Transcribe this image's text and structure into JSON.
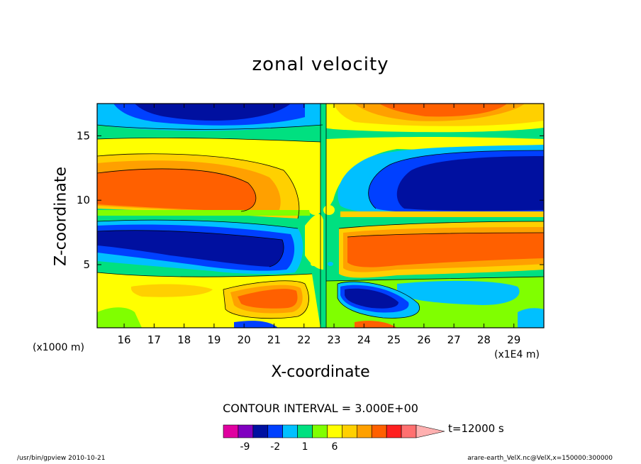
{
  "chart_data": {
    "type": "heatmap",
    "title": "zonal velocity",
    "xlabel": "X-coordinate",
    "ylabel": "Z-coordinate",
    "x_unit": "(x1000 m)",
    "x_scale": "(x1E4 m)",
    "x_ticks": [
      16,
      17,
      18,
      19,
      20,
      21,
      22,
      23,
      24,
      25,
      26,
      27,
      28,
      29
    ],
    "y_ticks": [
      5,
      10,
      15
    ],
    "xlim": [
      15.1,
      30.0
    ],
    "ylim": [
      0.1,
      17.5
    ],
    "contour_interval": "CONTOUR INTERVAL = 3.000E+00",
    "time_label": "t=12000 s",
    "colorbar": {
      "colors": [
        "#e000a0",
        "#8000c0",
        "#0010a0",
        "#0040ff",
        "#00c0ff",
        "#00e080",
        "#80ff00",
        "#ffff00",
        "#ffd000",
        "#ffa000",
        "#ff6000",
        "#ff2020",
        "#ff7070",
        "#ffb0b0"
      ],
      "labels": [
        "-9",
        "-2",
        "1",
        "6"
      ],
      "label_positions": [
        1,
        4,
        6,
        8
      ]
    },
    "regions": [
      {
        "name": "upper-left-negative",
        "x": [
          15.5,
          21.5
        ],
        "y": [
          15.8,
          17.5
        ],
        "level": -9
      },
      {
        "name": "upper-right-positive",
        "x": [
          23.5,
          29.0
        ],
        "y": [
          15.8,
          17.5
        ],
        "level": 6
      },
      {
        "name": "mid-left-positive",
        "x": [
          15.2,
          22.0
        ],
        "y": [
          9.0,
          12.8
        ],
        "level": 6
      },
      {
        "name": "mid-right-negative",
        "x": [
          23.5,
          30.0
        ],
        "y": [
          9.0,
          12.8
        ],
        "level": -9
      },
      {
        "name": "low-left-negative",
        "x": [
          15.2,
          22.0
        ],
        "y": [
          4.5,
          7.8
        ],
        "level": -9
      },
      {
        "name": "low-right-positive",
        "x": [
          22.9,
          30.0
        ],
        "y": [
          4.5,
          7.8
        ],
        "level": 6
      },
      {
        "name": "bottom-left-positive",
        "x": [
          19.5,
          22.0
        ],
        "y": [
          1.0,
          3.6
        ],
        "level": 6
      },
      {
        "name": "bottom-right-negative",
        "x": [
          23.0,
          26.0
        ],
        "y": [
          1.2,
          3.6
        ],
        "level": -9
      }
    ]
  },
  "footer": {
    "left": "/usr/bin/gpview   2010-10-21",
    "right": "arare-earth_VelX.nc@VelX,x=150000:300000"
  }
}
